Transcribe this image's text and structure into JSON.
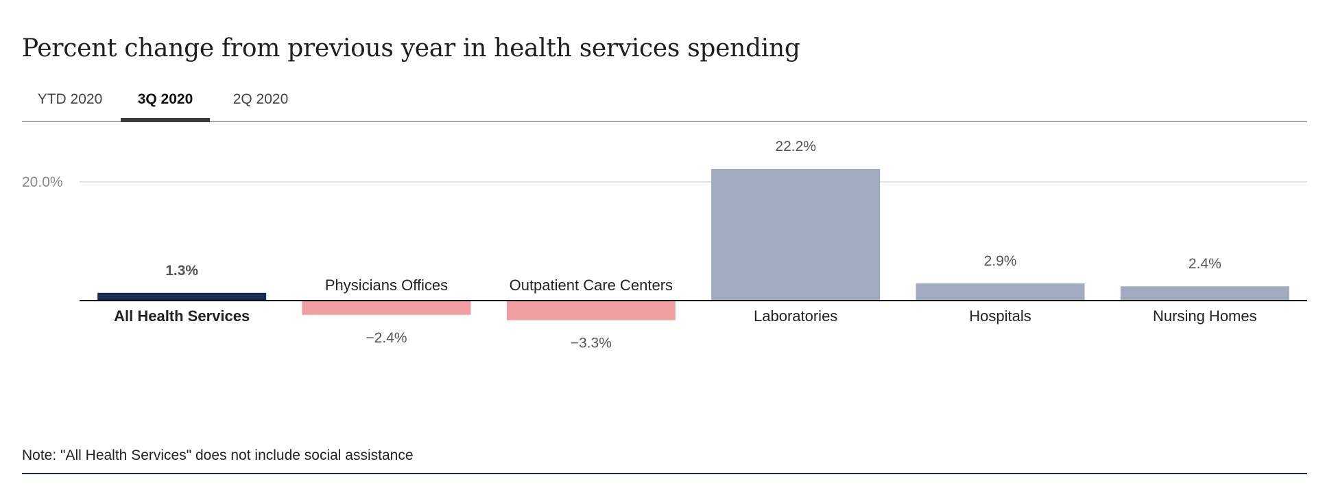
{
  "title": "Percent change from previous year in health services spending",
  "tabs": [
    {
      "label": "YTD 2020",
      "active": false
    },
    {
      "label": "3Q 2020",
      "active": true
    },
    {
      "label": "2Q 2020",
      "active": false
    }
  ],
  "note": "Note: \"All Health Services\" does not include social assistance",
  "colors": {
    "highlight": "#1b2a52",
    "positive": "#a1aabf",
    "negative": "#f09e9f",
    "gridline": "#dcdcdc",
    "tick_label": "#8a8a8a",
    "value_label": "#555555",
    "rule": "#1b2a52"
  },
  "chart_data": {
    "type": "bar",
    "categories": [
      "All Health Services",
      "Physicians Offices",
      "Outpatient Care Centers",
      "Laboratories",
      "Hospitals",
      "Nursing Homes"
    ],
    "values": [
      1.3,
      -2.4,
      -3.3,
      22.2,
      2.9,
      2.4
    ],
    "value_labels": [
      "1.3%",
      "−2.4%",
      "−3.3%",
      "22.2%",
      "2.9%",
      "2.4%"
    ],
    "highlighted_category": "All Health Services",
    "yticks": [
      20.0
    ],
    "ytick_labels": [
      "20.0%"
    ],
    "ylim": [
      -4,
      24
    ],
    "grid": true,
    "title": "Percent change from previous year in health services spending",
    "xlabel": "",
    "ylabel": ""
  }
}
